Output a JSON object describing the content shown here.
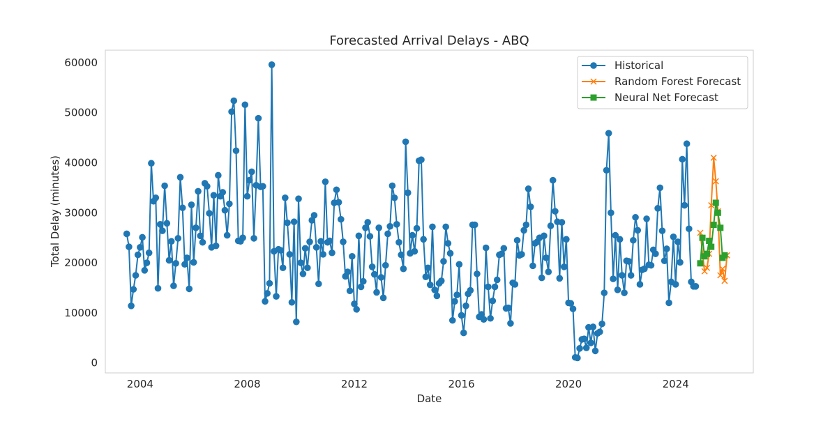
{
  "chart_data": {
    "type": "line",
    "title": "Forecasted Arrival Delays - ABQ",
    "xlabel": "Date",
    "ylabel": "Total Delay (minutes)",
    "x_ticks": [
      "2004",
      "2008",
      "2012",
      "2016",
      "2020",
      "2024"
    ],
    "y_ticks": [
      "0",
      "10000",
      "20000",
      "30000",
      "40000",
      "50000",
      "60000"
    ],
    "xlim": [
      2002.7,
      2026.9
    ],
    "ylim": [
      -2000,
      62500
    ],
    "grid": false,
    "legend_position": "top-right",
    "series": [
      {
        "name": "Historical",
        "color": "#1f77b4",
        "marker": "circle",
        "start_year": 2003.5,
        "step_years": 0.08333,
        "values": [
          25800,
          23200,
          11400,
          14700,
          17500,
          21600,
          23100,
          25100,
          18500,
          20000,
          22000,
          39900,
          32300,
          33000,
          14900,
          27700,
          26400,
          35400,
          27900,
          20500,
          24300,
          15400,
          19900,
          24900,
          37100,
          31000,
          19700,
          21000,
          14800,
          31600,
          20100,
          27000,
          34300,
          25400,
          24100,
          35900,
          35300,
          29900,
          23100,
          33500,
          23400,
          37500,
          33300,
          34100,
          30500,
          25500,
          31800,
          50200,
          52400,
          42400,
          24400,
          24300,
          25000,
          51600,
          33300,
          36500,
          38200,
          24900,
          35500,
          48900,
          35200,
          35300,
          12300,
          13900,
          15900,
          59600,
          22300,
          13300,
          22700,
          22500,
          19000,
          33000,
          28000,
          21700,
          12100,
          28200,
          8200,
          32800,
          20000,
          17800,
          22900,
          19000,
          24200,
          28500,
          29500,
          23100,
          15800,
          24300,
          21700,
          36200,
          24100,
          24400,
          22000,
          32000,
          34600,
          32100,
          28700,
          24200,
          17300,
          18200,
          14400,
          21300,
          11800,
          10700,
          25400,
          15200,
          16300,
          27000,
          28100,
          25300,
          19200,
          17700,
          14100,
          27000,
          17100,
          13000,
          19500,
          25800,
          27300,
          35400,
          33000,
          27700,
          24100,
          21600,
          18800,
          44200,
          34000,
          21900,
          25500,
          22300,
          26900,
          40400,
          40600,
          24700,
          17200,
          19000,
          15600,
          27200,
          14600,
          13400,
          15900,
          16400,
          20300,
          27200,
          23900,
          21900,
          8500,
          12300,
          13600,
          19700,
          9500,
          6000,
          11400,
          13800,
          14500,
          27600,
          27600,
          17800,
          9200,
          9700,
          8700,
          23000,
          15200,
          8900,
          12400,
          15200,
          16600,
          21600,
          21800,
          22900,
          10900,
          11000,
          7900,
          16000,
          15700,
          24500,
          21500,
          21700,
          26500,
          27600,
          34800,
          31200,
          19400,
          23900,
          24200,
          25000,
          17000,
          25400,
          21000,
          18200,
          27400,
          36500,
          30300,
          28200,
          16900,
          28100,
          19200,
          24700,
          12000,
          11900,
          10800,
          1100,
          1000,
          2900,
          4700,
          4800,
          3000,
          7100,
          4000,
          7200,
          2400,
          5900,
          6200,
          7800,
          14000,
          38500,
          45900,
          30000,
          16800,
          25500,
          14600,
          24700,
          17500,
          14000,
          20400,
          20300,
          17500,
          24500,
          29100,
          26500,
          15700,
          18600,
          18800,
          28800,
          19600,
          19500,
          22600,
          21800,
          30900,
          35000,
          26400,
          20400,
          22800,
          12000,
          16200,
          25200,
          15700,
          24200,
          20100,
          40700,
          31500,
          43800,
          26800,
          16200,
          15300,
          15300
        ]
      },
      {
        "name": "Random Forest Forecast",
        "color": "#ff7f0e",
        "marker": "x",
        "x": [
          2024.92,
          2025.08,
          2025.17,
          2025.25,
          2025.33,
          2025.42,
          2025.5,
          2025.58,
          2025.67,
          2025.75,
          2025.83,
          2025.92
        ],
        "values": [
          26000,
          18300,
          19000,
          21800,
          31500,
          41000,
          36300,
          30300,
          17500,
          18800,
          16400,
          21500
        ]
      },
      {
        "name": "Neural Net Forecast",
        "color": "#2ca02c",
        "marker": "square",
        "x": [
          2024.92,
          2025.0,
          2025.08,
          2025.17,
          2025.25,
          2025.33,
          2025.42,
          2025.5,
          2025.58,
          2025.67,
          2025.75,
          2025.83
        ],
        "values": [
          19900,
          25000,
          21300,
          21800,
          24400,
          23200,
          27600,
          32000,
          30000,
          27000,
          21000,
          21500
        ]
      }
    ]
  }
}
